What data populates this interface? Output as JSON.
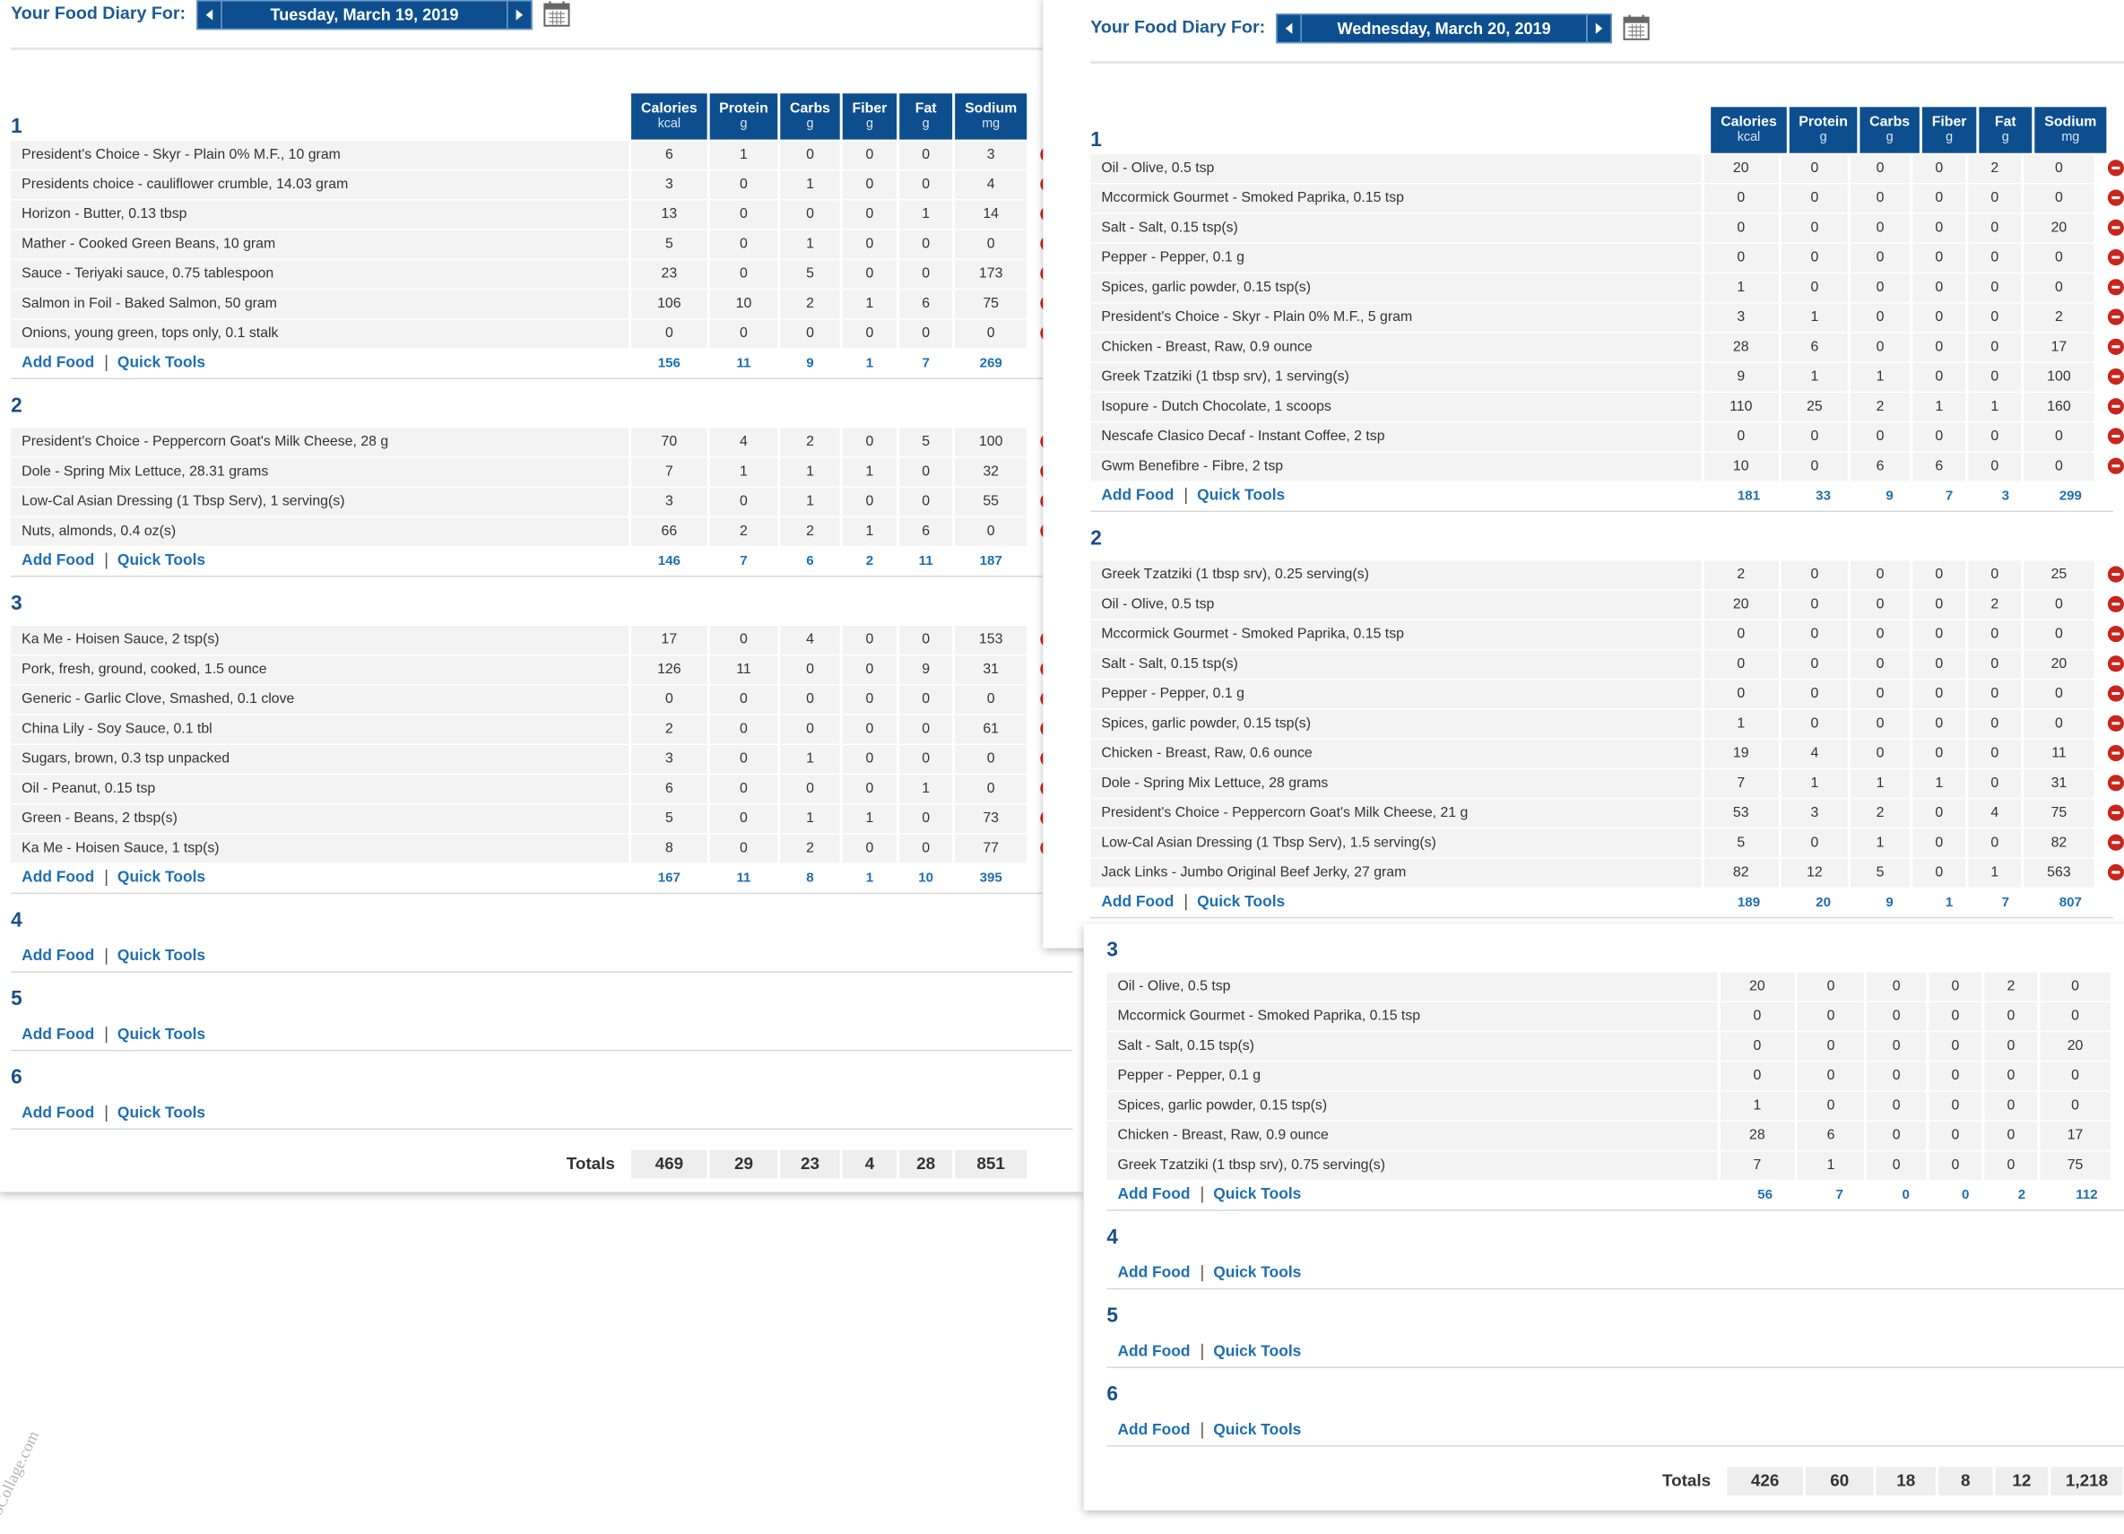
{
  "labels": {
    "add_food": "Add Food",
    "quick_tools": "Quick Tools",
    "totals": "Totals",
    "watermark": "oCollage.com"
  },
  "diaries": [
    {
      "header": "Your Food Diary For:",
      "date": "Tuesday, March 19, 2019",
      "columns": [
        {
          "name": "Calories",
          "unit": "kcal"
        },
        {
          "name": "Protein",
          "unit": "g"
        },
        {
          "name": "Carbs",
          "unit": "g"
        },
        {
          "name": "Fiber",
          "unit": "g"
        },
        {
          "name": "Fat",
          "unit": "g"
        },
        {
          "name": "Sodium",
          "unit": "mg"
        }
      ],
      "meals": [
        {
          "title": "1",
          "items": [
            {
              "name": "President's Choice - Skyr - Plain 0% M.F., 10 gram",
              "values": [
                6,
                1,
                0,
                0,
                0,
                3
              ]
            },
            {
              "name": "Presidents choice - cauliflower crumble, 14.03 gram",
              "values": [
                3,
                0,
                1,
                0,
                0,
                4
              ]
            },
            {
              "name": "Horizon - Butter, 0.13 tbsp",
              "values": [
                13,
                0,
                0,
                0,
                1,
                14
              ]
            },
            {
              "name": "Mather - Cooked Green Beans, 10 gram",
              "values": [
                5,
                0,
                1,
                0,
                0,
                0
              ]
            },
            {
              "name": "Sauce - Teriyaki sauce, 0.75 tablespoon",
              "values": [
                23,
                0,
                5,
                0,
                0,
                173
              ]
            },
            {
              "name": "Salmon in Foil - Baked Salmon, 50 gram",
              "values": [
                106,
                10,
                2,
                1,
                6,
                75
              ]
            },
            {
              "name": "Onions, young green, tops only, 0.1 stalk",
              "values": [
                0,
                0,
                0,
                0,
                0,
                0
              ]
            }
          ],
          "totals": [
            156,
            11,
            9,
            1,
            7,
            269
          ]
        },
        {
          "title": "2",
          "items": [
            {
              "name": "President's Choice - Peppercorn Goat's Milk Cheese, 28 g",
              "values": [
                70,
                4,
                2,
                0,
                5,
                100
              ]
            },
            {
              "name": "Dole - Spring Mix Lettuce, 28.31 grams",
              "values": [
                7,
                1,
                1,
                1,
                0,
                32
              ]
            },
            {
              "name": "Low-Cal Asian Dressing (1 Tbsp Serv), 1 serving(s)",
              "values": [
                3,
                0,
                1,
                0,
                0,
                55
              ]
            },
            {
              "name": "Nuts, almonds, 0.4 oz(s)",
              "values": [
                66,
                2,
                2,
                1,
                6,
                0
              ]
            }
          ],
          "totals": [
            146,
            7,
            6,
            2,
            11,
            187
          ]
        },
        {
          "title": "3",
          "items": [
            {
              "name": "Ka Me - Hoisen Sauce, 2 tsp(s)",
              "values": [
                17,
                0,
                4,
                0,
                0,
                153
              ]
            },
            {
              "name": "Pork, fresh, ground, cooked, 1.5 ounce",
              "values": [
                126,
                11,
                0,
                0,
                9,
                31
              ]
            },
            {
              "name": "Generic - Garlic Clove, Smashed, 0.1 clove",
              "values": [
                0,
                0,
                0,
                0,
                0,
                0
              ]
            },
            {
              "name": "China Lily - Soy Sauce, 0.1 tbl",
              "values": [
                2,
                0,
                0,
                0,
                0,
                61
              ]
            },
            {
              "name": "Sugars, brown, 0.3 tsp unpacked",
              "values": [
                3,
                0,
                1,
                0,
                0,
                0
              ]
            },
            {
              "name": "Oil - Peanut, 0.15 tsp",
              "values": [
                6,
                0,
                0,
                0,
                1,
                0
              ]
            },
            {
              "name": "Green - Beans, 2 tbsp(s)",
              "values": [
                5,
                0,
                1,
                1,
                0,
                73
              ]
            },
            {
              "name": "Ka Me - Hoisen Sauce, 1 tsp(s)",
              "values": [
                8,
                0,
                2,
                0,
                0,
                77
              ]
            }
          ],
          "totals": [
            167,
            11,
            8,
            1,
            10,
            395
          ]
        },
        {
          "title": "4",
          "items": []
        },
        {
          "title": "5",
          "items": []
        },
        {
          "title": "6",
          "items": []
        }
      ],
      "totals": [
        469,
        29,
        23,
        4,
        28,
        851
      ]
    },
    {
      "header": "Your Food Diary For:",
      "date": "Wednesday, March 20, 2019",
      "columns": [
        {
          "name": "Calories",
          "unit": "kcal"
        },
        {
          "name": "Protein",
          "unit": "g"
        },
        {
          "name": "Carbs",
          "unit": "g"
        },
        {
          "name": "Fiber",
          "unit": "g"
        },
        {
          "name": "Fat",
          "unit": "g"
        },
        {
          "name": "Sodium",
          "unit": "mg"
        }
      ],
      "meals": [
        {
          "title": "1",
          "items": [
            {
              "name": "Oil - Olive, 0.5 tsp",
              "values": [
                20,
                0,
                0,
                0,
                2,
                0
              ]
            },
            {
              "name": "Mccormick Gourmet - Smoked Paprika, 0.15 tsp",
              "values": [
                0,
                0,
                0,
                0,
                0,
                0
              ]
            },
            {
              "name": "Salt - Salt, 0.15 tsp(s)",
              "values": [
                0,
                0,
                0,
                0,
                0,
                20
              ]
            },
            {
              "name": "Pepper - Pepper, 0.1 g",
              "values": [
                0,
                0,
                0,
                0,
                0,
                0
              ]
            },
            {
              "name": "Spices, garlic powder, 0.15 tsp(s)",
              "values": [
                1,
                0,
                0,
                0,
                0,
                0
              ]
            },
            {
              "name": "President's Choice - Skyr - Plain 0% M.F., 5 gram",
              "values": [
                3,
                1,
                0,
                0,
                0,
                2
              ]
            },
            {
              "name": "Chicken - Breast, Raw, 0.9 ounce",
              "values": [
                28,
                6,
                0,
                0,
                0,
                17
              ]
            },
            {
              "name": "Greek Tzatziki (1 tbsp srv), 1 serving(s)",
              "values": [
                9,
                1,
                1,
                0,
                0,
                100
              ]
            },
            {
              "name": "Isopure - Dutch Chocolate, 1 scoops",
              "values": [
                110,
                25,
                2,
                1,
                1,
                160
              ]
            },
            {
              "name": "Nescafe Clasico Decaf - Instant Coffee, 2 tsp",
              "values": [
                0,
                0,
                0,
                0,
                0,
                0
              ]
            },
            {
              "name": "Gwm Benefibre - Fibre, 2 tsp",
              "values": [
                10,
                0,
                6,
                6,
                0,
                0
              ]
            }
          ],
          "totals": [
            181,
            33,
            9,
            7,
            3,
            299
          ]
        },
        {
          "title": "2",
          "items": [
            {
              "name": "Greek Tzatziki (1 tbsp srv), 0.25 serving(s)",
              "values": [
                2,
                0,
                0,
                0,
                0,
                25
              ]
            },
            {
              "name": "Oil - Olive, 0.5 tsp",
              "values": [
                20,
                0,
                0,
                0,
                2,
                0
              ]
            },
            {
              "name": "Mccormick Gourmet - Smoked Paprika, 0.15 tsp",
              "values": [
                0,
                0,
                0,
                0,
                0,
                0
              ]
            },
            {
              "name": "Salt - Salt, 0.15 tsp(s)",
              "values": [
                0,
                0,
                0,
                0,
                0,
                20
              ]
            },
            {
              "name": "Pepper - Pepper, 0.1 g",
              "values": [
                0,
                0,
                0,
                0,
                0,
                0
              ]
            },
            {
              "name": "Spices, garlic powder, 0.15 tsp(s)",
              "values": [
                1,
                0,
                0,
                0,
                0,
                0
              ]
            },
            {
              "name": "Chicken - Breast, Raw, 0.6 ounce",
              "values": [
                19,
                4,
                0,
                0,
                0,
                11
              ]
            },
            {
              "name": "Dole - Spring Mix Lettuce, 28 grams",
              "values": [
                7,
                1,
                1,
                1,
                0,
                31
              ]
            },
            {
              "name": "President's Choice - Peppercorn Goat's Milk Cheese, 21 g",
              "values": [
                53,
                3,
                2,
                0,
                4,
                75
              ]
            },
            {
              "name": "Low-Cal Asian Dressing (1 Tbsp Serv), 1.5 serving(s)",
              "values": [
                5,
                0,
                1,
                0,
                0,
                82
              ]
            },
            {
              "name": "Jack Links - Jumbo Original Beef Jerky, 27 gram",
              "values": [
                82,
                12,
                5,
                0,
                1,
                563
              ]
            }
          ],
          "totals": [
            189,
            20,
            9,
            1,
            7,
            807
          ]
        },
        {
          "title": "3",
          "items": [
            {
              "name": "Oil - Olive, 0.5 tsp",
              "values": [
                20,
                0,
                0,
                0,
                2,
                0
              ]
            },
            {
              "name": "Mccormick Gourmet - Smoked Paprika, 0.15 tsp",
              "values": [
                0,
                0,
                0,
                0,
                0,
                0
              ]
            },
            {
              "name": "Salt - Salt, 0.15 tsp(s)",
              "values": [
                0,
                0,
                0,
                0,
                0,
                20
              ]
            },
            {
              "name": "Pepper - Pepper, 0.1 g",
              "values": [
                0,
                0,
                0,
                0,
                0,
                0
              ]
            },
            {
              "name": "Spices, garlic powder, 0.15 tsp(s)",
              "values": [
                1,
                0,
                0,
                0,
                0,
                0
              ]
            },
            {
              "name": "Chicken - Breast, Raw, 0.9 ounce",
              "values": [
                28,
                6,
                0,
                0,
                0,
                17
              ]
            },
            {
              "name": "Greek Tzatziki (1 tbsp srv), 0.75 serving(s)",
              "values": [
                7,
                1,
                0,
                0,
                0,
                75
              ]
            }
          ],
          "totals": [
            56,
            7,
            0,
            0,
            2,
            112
          ]
        },
        {
          "title": "4",
          "items": []
        },
        {
          "title": "5",
          "items": []
        },
        {
          "title": "6",
          "items": []
        }
      ],
      "totals": [
        426,
        60,
        18,
        8,
        12,
        "1,218"
      ]
    }
  ]
}
